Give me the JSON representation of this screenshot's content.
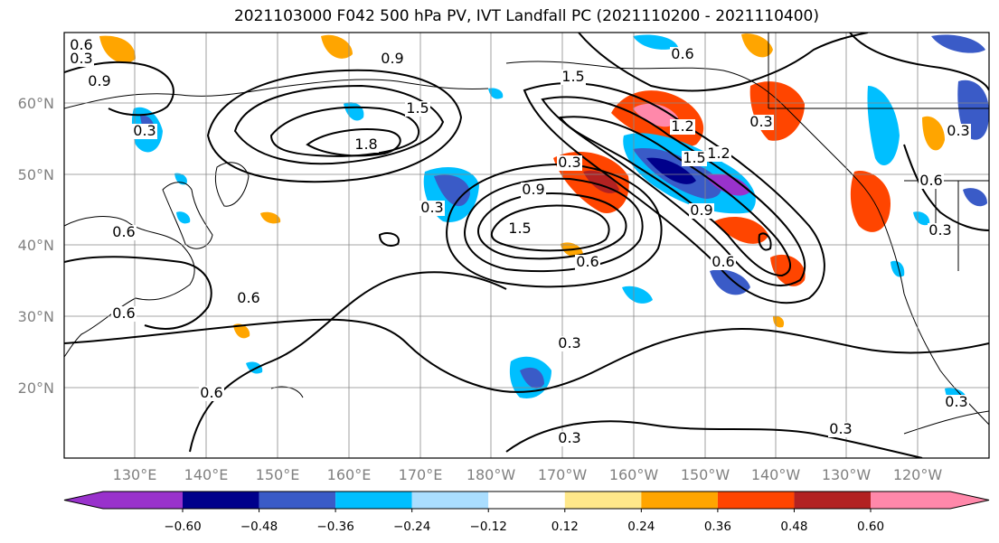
{
  "title": "2021103000 F042 500 hPa PV, IVT Landfall PC (2021110200 - 2021110400)",
  "lat_ticks": [
    "20°N",
    "30°N",
    "40°N",
    "50°N",
    "60°N"
  ],
  "lon_ticks": [
    "130°E",
    "140°E",
    "150°E",
    "160°E",
    "170°E",
    "180°W",
    "170°W",
    "160°W",
    "150°W",
    "140°W",
    "130°W",
    "120°W"
  ],
  "colorbar": {
    "colors": [
      "#9932cc",
      "#00008b",
      "#3a5bc7",
      "#00bfff",
      "#aadeff",
      "#ffffff",
      "#ffe88a",
      "#ffa500",
      "#ff4500",
      "#b22222",
      "#ff88aa"
    ],
    "tick_labels": [
      "−0.60",
      "−0.48",
      "−0.36",
      "−0.24",
      "−0.12",
      "0.12",
      "0.24",
      "0.36",
      "0.48",
      "0.60"
    ]
  },
  "contour_labels": [
    "0.3",
    "0.6",
    "0.9",
    "1.2",
    "1.5",
    "1.8"
  ],
  "contour_label_instances": [
    "0.9",
    "0.6",
    "0.9",
    "0.6",
    "0.3",
    "1.5",
    "1.8",
    "1.5",
    "1.2",
    "0.3",
    "0.9",
    "1.5",
    "0.3",
    "0.6",
    "1.5",
    "1.2",
    "0.6",
    "0.9",
    "0.6",
    "0.3",
    "0.6",
    "0.6",
    "0.3",
    "0.6",
    "0.3",
    "0.3",
    "0.6",
    "0.3",
    "0.3",
    "0.3",
    "0.3"
  ]
}
